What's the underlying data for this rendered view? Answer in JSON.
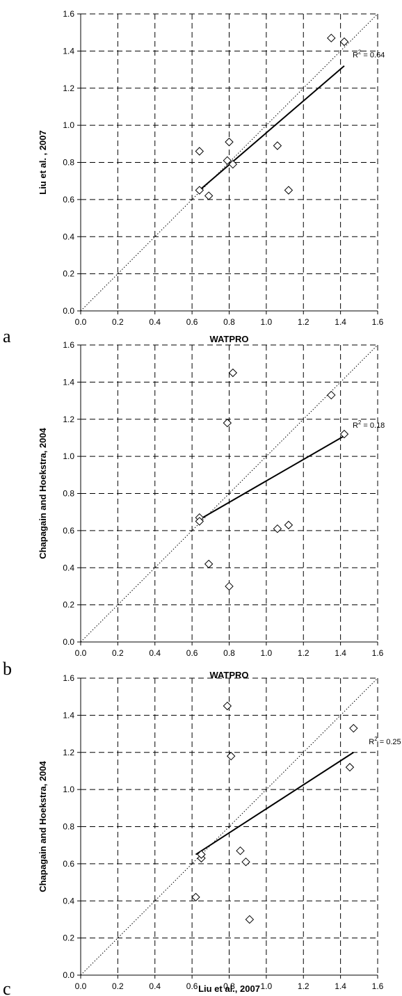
{
  "chart_data": [
    {
      "type": "scatter",
      "panel_label": "a",
      "xlabel": "WATPRO",
      "ylabel": "Liu et al. , 2007",
      "xlim": [
        0,
        1.6
      ],
      "ylim": [
        0,
        1.6
      ],
      "xticks": [
        "0.0",
        "0.2",
        "0.4",
        "0.6",
        "0.8",
        "1.0",
        "1.2",
        "1.4",
        "1.6"
      ],
      "yticks": [
        "0.0",
        "0.2",
        "0.4",
        "0.6",
        "0.8",
        "1.0",
        "1.2",
        "1.4",
        "1.6"
      ],
      "grid": true,
      "marker": "diamond-open",
      "points": [
        {
          "x": 0.64,
          "y": 0.86
        },
        {
          "x": 0.64,
          "y": 0.65
        },
        {
          "x": 0.69,
          "y": 0.62
        },
        {
          "x": 0.79,
          "y": 0.81
        },
        {
          "x": 0.8,
          "y": 0.91
        },
        {
          "x": 0.82,
          "y": 0.79
        },
        {
          "x": 1.06,
          "y": 0.89
        },
        {
          "x": 1.12,
          "y": 0.65
        },
        {
          "x": 1.35,
          "y": 1.47
        },
        {
          "x": 1.42,
          "y": 1.45
        }
      ],
      "reference_line": {
        "style": "dotted",
        "from": [
          0,
          0
        ],
        "to": [
          1.6,
          1.6
        ]
      },
      "trendline": {
        "from": [
          0.64,
          0.65
        ],
        "to": [
          1.42,
          1.32
        ]
      },
      "annotation": {
        "prefix": "R",
        "sup": "2",
        "text": " = 0.64"
      }
    },
    {
      "type": "scatter",
      "panel_label": "b",
      "xlabel": "WATPRO",
      "ylabel": "Chapagain and Hoekstra, 2004",
      "xlim": [
        0,
        1.6
      ],
      "ylim": [
        0,
        1.6
      ],
      "xticks": [
        "0.0",
        "0.2",
        "0.4",
        "0.6",
        "0.8",
        "1.0",
        "1.2",
        "1.4",
        "1.6"
      ],
      "yticks": [
        "0.0",
        "0.2",
        "0.4",
        "0.6",
        "0.8",
        "1.0",
        "1.2",
        "1.4",
        "1.6"
      ],
      "grid": true,
      "marker": "diamond-open",
      "points": [
        {
          "x": 0.64,
          "y": 0.67
        },
        {
          "x": 0.64,
          "y": 0.65
        },
        {
          "x": 0.69,
          "y": 0.42
        },
        {
          "x": 0.79,
          "y": 1.18
        },
        {
          "x": 0.8,
          "y": 0.3
        },
        {
          "x": 0.82,
          "y": 1.45
        },
        {
          "x": 1.06,
          "y": 0.61
        },
        {
          "x": 1.12,
          "y": 0.63
        },
        {
          "x": 1.35,
          "y": 1.33
        },
        {
          "x": 1.42,
          "y": 1.12
        }
      ],
      "reference_line": {
        "style": "dotted",
        "from": [
          0,
          0
        ],
        "to": [
          1.6,
          1.6
        ]
      },
      "trendline": {
        "from": [
          0.64,
          0.66
        ],
        "to": [
          1.42,
          1.11
        ]
      },
      "annotation": {
        "prefix": "R",
        "sup": "2",
        "text": " = 0.18"
      }
    },
    {
      "type": "scatter",
      "panel_label": "c",
      "xlabel": "Liu et al., 2007",
      "ylabel": "Chapagain and Hoekstra, 2004",
      "xlim": [
        0,
        1.6
      ],
      "ylim": [
        0,
        1.6
      ],
      "xticks": [
        "0.0",
        "0.2",
        "0.4",
        "0.6",
        "0.8",
        "1.0",
        "1.2",
        "1.4",
        "1.6"
      ],
      "yticks": [
        "0.0",
        "0.2",
        "0.4",
        "0.6",
        "0.8",
        "1.0",
        "1.2",
        "1.4",
        "1.6"
      ],
      "grid": true,
      "marker": "diamond-open",
      "points": [
        {
          "x": 0.62,
          "y": 0.42
        },
        {
          "x": 0.65,
          "y": 0.63
        },
        {
          "x": 0.65,
          "y": 0.65
        },
        {
          "x": 0.79,
          "y": 1.45
        },
        {
          "x": 0.81,
          "y": 1.18
        },
        {
          "x": 0.86,
          "y": 0.67
        },
        {
          "x": 0.89,
          "y": 0.61
        },
        {
          "x": 0.91,
          "y": 0.3
        },
        {
          "x": 1.45,
          "y": 1.12
        },
        {
          "x": 1.47,
          "y": 1.33
        }
      ],
      "reference_line": {
        "style": "dotted",
        "from": [
          0,
          0
        ],
        "to": [
          1.6,
          1.6
        ]
      },
      "trendline": {
        "from": [
          0.62,
          0.65
        ],
        "to": [
          1.47,
          1.2
        ]
      },
      "annotation": {
        "prefix": "R",
        "sup": "2",
        "text": " = 0.25"
      }
    }
  ]
}
